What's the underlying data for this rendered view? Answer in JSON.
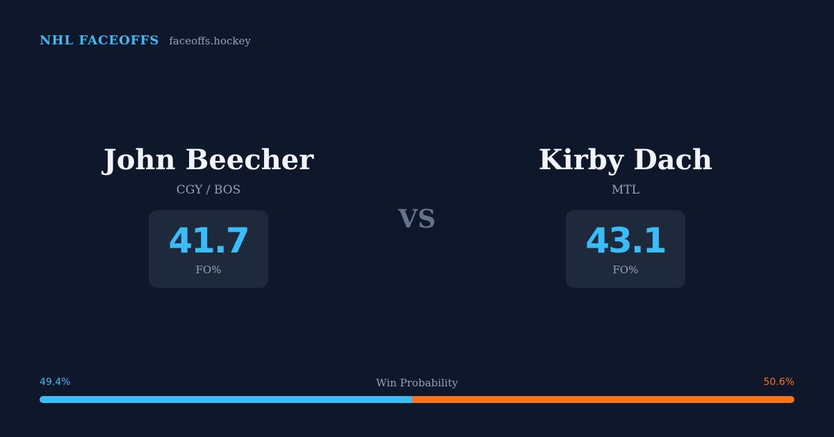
{
  "brand": {
    "name": "NHL FACEOFFS",
    "domain": "faceoffs.hockey"
  },
  "players": [
    {
      "name": "John Beecher",
      "team": "CGY / BOS",
      "stat_value": "41.7",
      "stat_label": "FO%"
    },
    {
      "name": "Kirby Dach",
      "team": "MTL",
      "stat_value": "43.1",
      "stat_label": "FO%"
    }
  ],
  "vs_label": "VS",
  "win_probability": {
    "title": "Win Probability",
    "left_label": "49.4%",
    "right_label": "50.6%",
    "left_fraction": 0.494,
    "left_color": "#38bdf8",
    "right_color": "#f97316"
  },
  "colors": {
    "background": "#0f172a",
    "card": "#1e293b",
    "accent": "#38bdf8",
    "opponent": "#f97316",
    "muted": "#94a3b8"
  }
}
